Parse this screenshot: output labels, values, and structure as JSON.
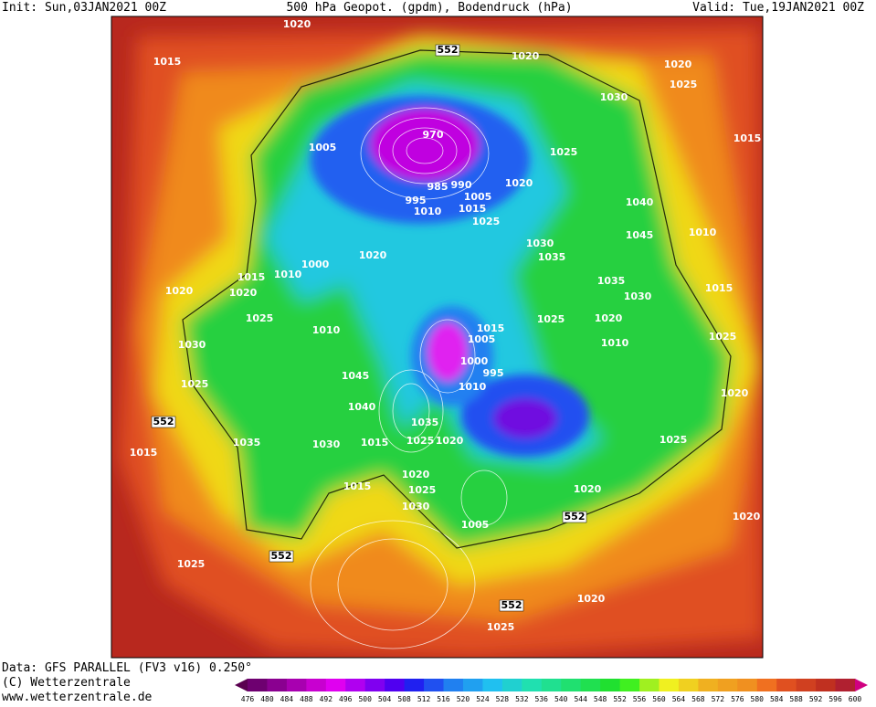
{
  "header": {
    "init": "Init: Sun,03JAN2021 00Z",
    "title": "500 hPa Geopot. (gpdm), Bodendruck (hPa)",
    "valid": "Valid: Tue,19JAN2021 00Z"
  },
  "footer": {
    "data": "Data: GFS PARALLEL (FV3 v16) 0.250°",
    "copyright": "(C) Wetterzentrale",
    "url": "www.wetterzentrale.de"
  },
  "colorbar": {
    "labels": [
      476,
      480,
      484,
      488,
      492,
      496,
      500,
      504,
      508,
      512,
      516,
      520,
      524,
      528,
      532,
      536,
      540,
      544,
      548,
      552,
      556,
      560,
      564,
      568,
      572,
      576,
      580,
      584,
      588,
      592,
      596,
      600
    ],
    "colors": [
      "#5a0050",
      "#6e0070",
      "#8a0090",
      "#a800b0",
      "#c800d0",
      "#e000f0",
      "#b000f0",
      "#8000f0",
      "#5000f0",
      "#2020f0",
      "#2050f0",
      "#2080f0",
      "#20a0f0",
      "#20c0f0",
      "#20d0d0",
      "#20e0b0",
      "#20e090",
      "#20e070",
      "#20e050",
      "#20e030",
      "#40f020",
      "#a0f020",
      "#f0f020",
      "#f0d020",
      "#f0b020",
      "#f0a020",
      "#f09020",
      "#f07020",
      "#e05020",
      "#d04020",
      "#c03020",
      "#b02030",
      "#d00080"
    ]
  },
  "map_labels": [
    "1020",
    "1015",
    "552",
    "1020",
    "1020",
    "1025",
    "1030",
    "1015",
    "970",
    "1005",
    "1025",
    "985",
    "990",
    "1005",
    "1020",
    "995",
    "1010",
    "1015",
    "1025",
    "1040",
    "1045",
    "1010",
    "1030",
    "1035",
    "1020",
    "1000",
    "1015",
    "1010",
    "1020",
    "1020",
    "1035",
    "1030",
    "1015",
    "1025",
    "1015",
    "1025",
    "1020",
    "1010",
    "1005",
    "1010",
    "1025",
    "1030",
    "1000",
    "995",
    "1045",
    "1010",
    "1025",
    "1020",
    "1040",
    "1035",
    "1025",
    "1020",
    "1015",
    "552",
    "1035",
    "1030",
    "1025",
    "1015",
    "1020",
    "1015",
    "1025",
    "1020",
    "1030",
    "552",
    "1020",
    "1005",
    "552",
    "1025",
    "552",
    "1020",
    "1025"
  ]
}
